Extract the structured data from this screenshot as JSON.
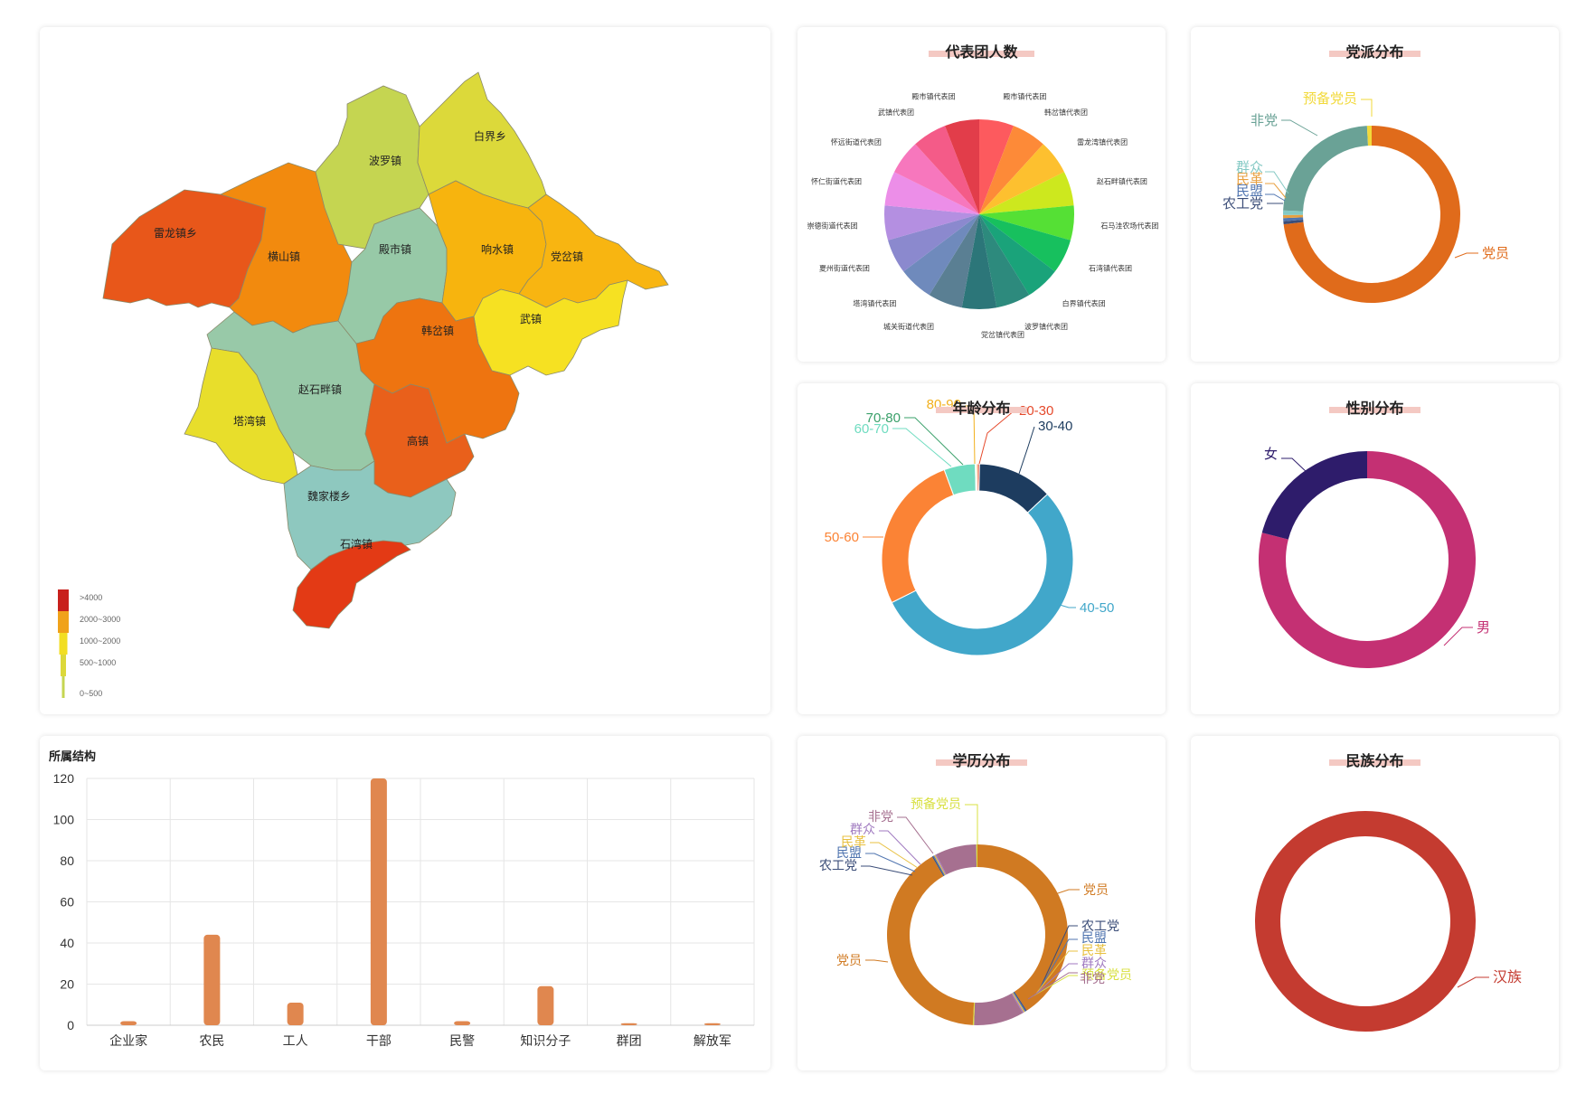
{
  "map": {
    "regions": [
      {
        "name": "雷龙镇乡",
        "color": "#e8571a"
      },
      {
        "name": "横山镇",
        "color": "#f28a0e"
      },
      {
        "name": "波罗镇",
        "color": "#c5d551"
      },
      {
        "name": "白界乡",
        "color": "#dcd93a"
      },
      {
        "name": "殿市镇",
        "color": "#97c9a7"
      },
      {
        "name": "响水镇",
        "color": "#f7b40e"
      },
      {
        "name": "党岔镇",
        "color": "#f8b511"
      },
      {
        "name": "武镇",
        "color": "#f6e122"
      },
      {
        "name": "韩岔镇",
        "color": "#ee7410"
      },
      {
        "name": "赵石畔镇",
        "color": "#98c9a8"
      },
      {
        "name": "塔湾镇",
        "color": "#e8de2b"
      },
      {
        "name": "高镇",
        "color": "#e9601b"
      },
      {
        "name": "魏家楼乡",
        "color": "#8ec8bf"
      },
      {
        "name": "石湾镇",
        "color": "#e33a15"
      }
    ],
    "legend": [
      {
        "label": ">4000",
        "color": "#c8201c"
      },
      {
        "label": "2000~3000",
        "color": "#f0a21a"
      },
      {
        "label": "1000~2000",
        "color": "#f2de22"
      },
      {
        "label": "500~1000",
        "color": "#dcd83a"
      },
      {
        "label": "0~500",
        "color": "#c5d551"
      }
    ]
  },
  "bar": {
    "title": "所属结构",
    "color": "#e0874f"
  },
  "cards": {
    "pie_title": "代表团人数",
    "party_title": "党派分布",
    "age_title": "年龄分布",
    "gender_title": "性别分布",
    "edu_title": "学历分布",
    "eth_title": "民族分布"
  },
  "chart_data": [
    {
      "type": "bar",
      "title": "所属结构",
      "categories": [
        "企业家",
        "农民",
        "工人",
        "干部",
        "民警",
        "知识分子",
        "群团",
        "解放军"
      ],
      "values": [
        2,
        44,
        11,
        120,
        2,
        19,
        1,
        1
      ],
      "ylim": [
        0,
        120
      ],
      "yticks": [
        0,
        20,
        40,
        60,
        80,
        100,
        120
      ],
      "grid": true
    },
    {
      "type": "pie",
      "title": "代表团人数",
      "labels": [
        "殿市镇代表团",
        "韩岔镇代表团",
        "雷龙湾镇代表团",
        "赵石畔镇代表团",
        "石马洼农场代表团",
        "石湾镇代表团",
        "白界镇代表团",
        "波罗镇代表团",
        "党岔镇代表团",
        "城关街道代表团",
        "塔湾镇代表团",
        "夏州街道代表团",
        "崇德街道代表团",
        "怀仁街道代表团",
        "怀远街道代表团",
        "武镇代表团",
        "殿市镇代表团"
      ],
      "values": [
        6,
        6,
        6,
        6,
        6,
        6,
        6,
        6,
        6,
        6,
        6,
        6,
        6,
        6,
        6,
        6,
        6
      ],
      "colors": [
        "#fd5a5e",
        "#fd8a38",
        "#fdc02f",
        "#cde81e",
        "#55e035",
        "#17c05e",
        "#1aa37a",
        "#2d8a7d",
        "#2c7679",
        "#5a7f93",
        "#6f8abc",
        "#8b89ce",
        "#b48fe1",
        "#ec8ee8",
        "#f777bd",
        "#f45b88",
        "#e23d4a"
      ]
    },
    {
      "type": "pie",
      "title": "党派分布",
      "donut": true,
      "labels": [
        "党员",
        "农工党",
        "民盟",
        "民革",
        "群众",
        "非党",
        "预备党员"
      ],
      "values": [
        262,
        2,
        2,
        2,
        3,
        84,
        3
      ],
      "colors": [
        "#e06b1b",
        "#3b4d78",
        "#5075b0",
        "#e8a040",
        "#84c9c4",
        "#6aa296",
        "#f2d93a"
      ]
    },
    {
      "type": "pie",
      "title": "年龄分布",
      "donut": true,
      "labels": [
        "20-30",
        "30-40",
        "40-50",
        "50-60",
        "60-70",
        "70-80",
        "80-90"
      ],
      "values": [
        1,
        36,
        155,
        76,
        15,
        0.4,
        0.6
      ],
      "colors": [
        "#e5492b",
        "#1d3c5f",
        "#41a7ca",
        "#fb8335",
        "#6fdcc0",
        "#3aa06a",
        "#f2b01d"
      ]
    },
    {
      "type": "pie",
      "title": "性别分布",
      "donut": true,
      "labels": [
        "男",
        "女"
      ],
      "values": [
        79,
        21
      ],
      "colors": [
        "#c43073",
        "#2e1c6b"
      ]
    },
    {
      "type": "pie",
      "title": "学历分布",
      "donut": true,
      "labels": [
        "党员",
        "农工党",
        "民盟",
        "民革",
        "群众",
        "非党",
        "预备党员",
        "党员",
        "农工党",
        "民盟",
        "民革",
        "群众",
        "非党",
        "预备党员"
      ],
      "values": [
        100,
        0.5,
        0.5,
        0.5,
        0.5,
        22,
        0.5,
        100,
        0.5,
        0.5,
        0.5,
        0.5,
        18,
        0.5
      ],
      "colors": [
        "#d07a22",
        "#3b4d78",
        "#5075b0",
        "#e8c040",
        "#a07ac0",
        "#a67090",
        "#d8e040",
        "#d07a22",
        "#3b4d78",
        "#5075b0",
        "#e8c040",
        "#a07ac0",
        "#a67090",
        "#d8e040"
      ]
    },
    {
      "type": "pie",
      "title": "民族分布",
      "donut": true,
      "labels": [
        "汉族"
      ],
      "values": [
        1
      ],
      "colors": [
        "#c43b30"
      ]
    }
  ]
}
